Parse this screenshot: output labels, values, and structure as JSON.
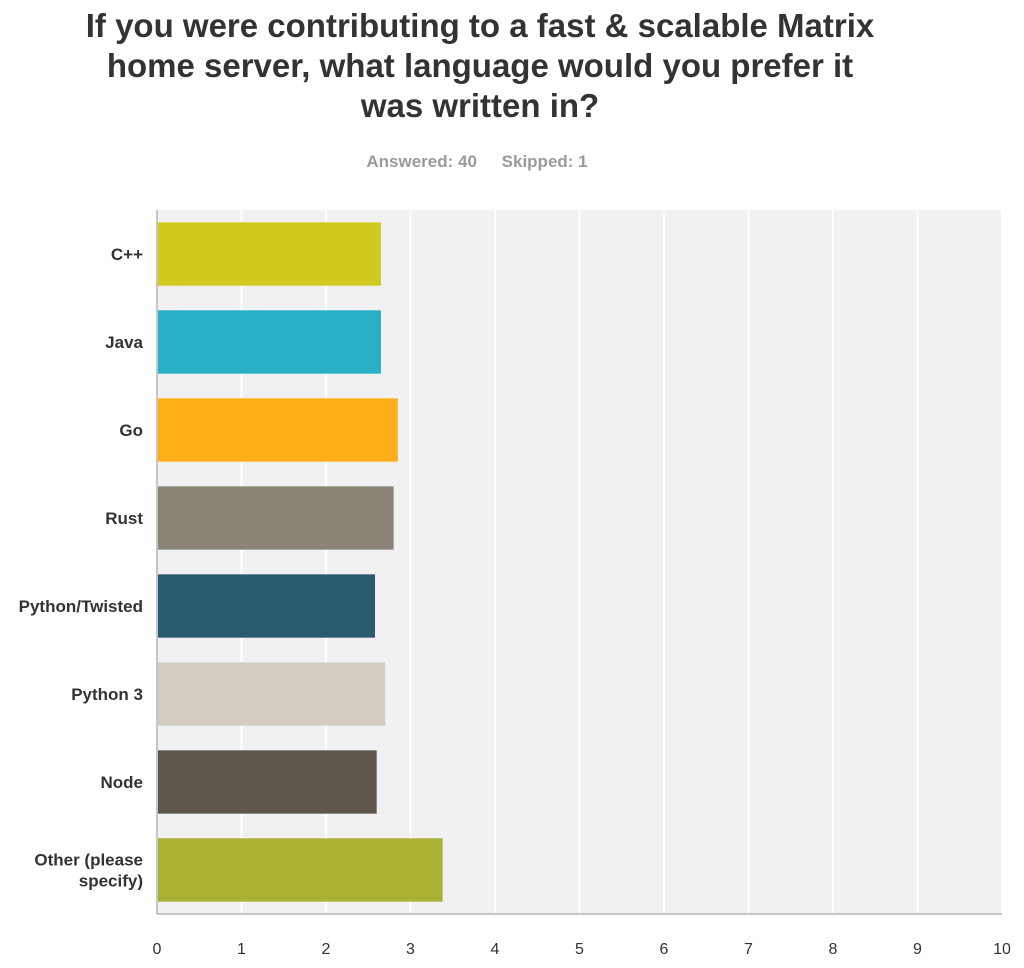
{
  "title": "If you were contributing to a fast & scalable Matrix home server, what language would you prefer it was written in?",
  "stats": {
    "answered": "Answered: 40",
    "skipped": "Skipped: 1"
  },
  "chart_data": {
    "type": "bar",
    "orientation": "horizontal",
    "title": "If you were contributing to a fast & scalable Matrix home server, what language would you prefer it was written in?",
    "categories": [
      "C++",
      "Java",
      "Go",
      "Rust",
      "Python/Twisted",
      "Python 3",
      "Node",
      "Other (please specify)"
    ],
    "values": [
      2.65,
      2.65,
      2.85,
      2.8,
      2.58,
      2.7,
      2.6,
      3.38
    ],
    "colors": [
      "#d2c91f",
      "#29b0c6",
      "#fdaf17",
      "#8a8577",
      "#2a5b70",
      "#d3cdc2",
      "#5e574c",
      "#a9b232"
    ],
    "xlim": [
      0,
      10
    ],
    "xticks": [
      "0",
      "1",
      "2",
      "3",
      "4",
      "5",
      "6",
      "7",
      "8",
      "9",
      "10"
    ],
    "grid": true,
    "background": "#f1f1f3"
  }
}
